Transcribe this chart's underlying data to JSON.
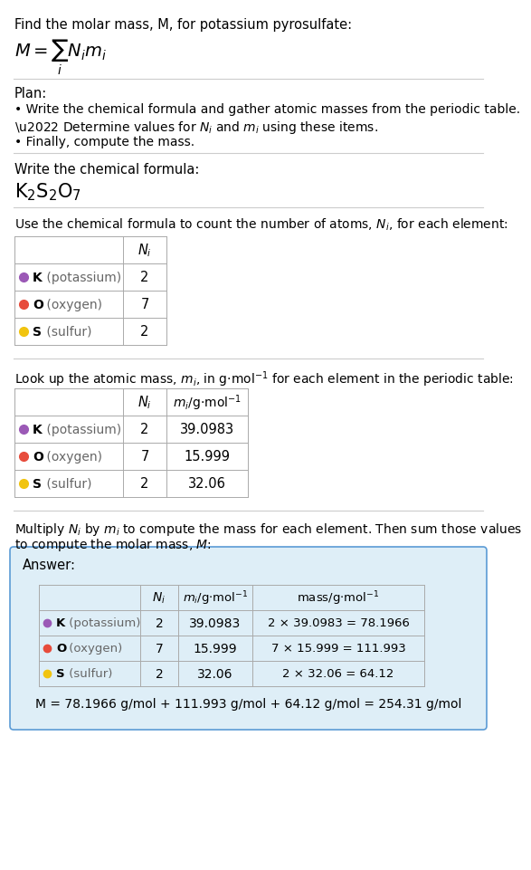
{
  "title_text": "Find the molar mass, M, for potassium pyrosulfate:",
  "plan_header": "Plan:",
  "plan_bullets": [
    "• Write the chemical formula and gather atomic masses from the periodic table.",
    "• Determine values for Nᵢ and mᵢ using these items.",
    "• Finally, compute the mass."
  ],
  "formula_header": "Write the chemical formula:",
  "table1_header": "Use the chemical formula to count the number of atoms, Nᵢ, for each element:",
  "table2_header": "Look up the atomic mass, mᵢ, in g·mol⁻¹ for each element in the periodic table:",
  "table3_line1": "Multiply Nᵢ by mᵢ to compute the mass for each element. Then sum those values",
  "table3_line2": "to compute the molar mass, M:",
  "answer_label": "Answer:",
  "element_symbols": [
    "K",
    "O",
    "S"
  ],
  "element_labels": [
    "(potassium)",
    "(oxygen)",
    "(sulfur)"
  ],
  "element_colors": [
    "#9b59b6",
    "#e74c3c",
    "#f1c40f"
  ],
  "Ni_values": [
    "2",
    "7",
    "2"
  ],
  "mi_values": [
    "39.0983",
    "15.999",
    "32.06"
  ],
  "mass_calcs": [
    "2 × 39.0983 = 78.1966",
    "7 × 15.999 = 111.993",
    "2 × 32.06 = 64.12"
  ],
  "final_answer": "M = 78.1966 g/mol + 111.993 g/mol + 64.12 g/mol = 254.31 g/mol",
  "answer_bg": "#deeef7",
  "answer_border": "#5b9bd5",
  "separator_color": "#cccccc",
  "table_line_color": "#aaaaaa"
}
